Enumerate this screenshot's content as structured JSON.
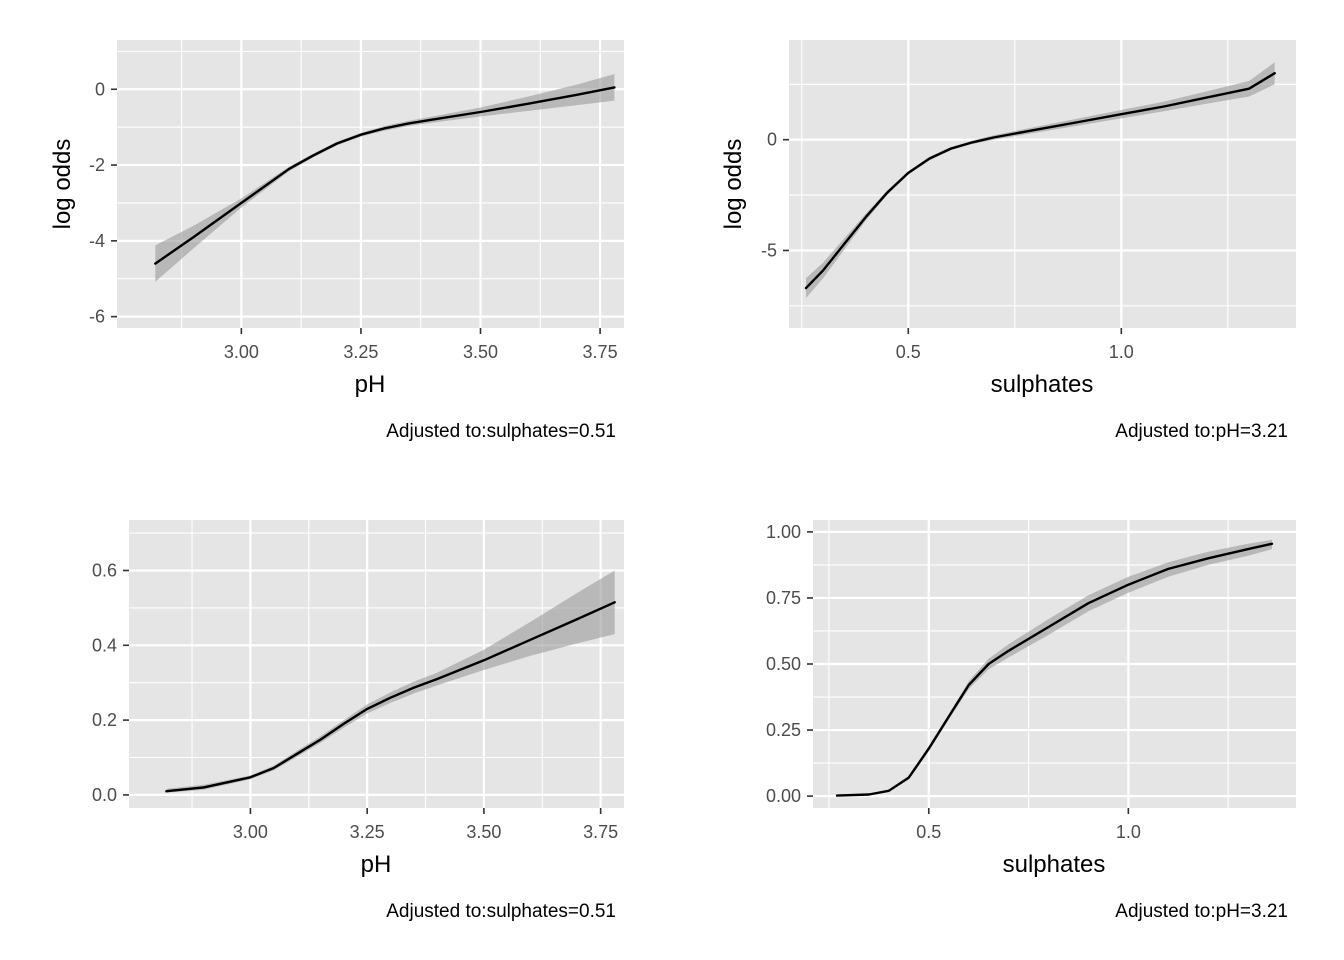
{
  "colors": {
    "panel_background": "#e5e5e5",
    "grid": "#ffffff",
    "line": "#000000",
    "ribbon": "#999999",
    "tick": "#333333"
  },
  "chart_data": [
    {
      "type": "line",
      "xlabel": "pH",
      "ylabel": "log odds",
      "caption": "Adjusted to:sulphates=0.51",
      "xlim": [
        2.74,
        3.8
      ],
      "ylim": [
        -6.3,
        1.3
      ],
      "xticks": [
        3.0,
        3.25,
        3.5,
        3.75
      ],
      "xtick_labels": [
        "3.00",
        "3.25",
        "3.50",
        "3.75"
      ],
      "yticks": [
        -6,
        -4,
        -2,
        0
      ],
      "ytick_labels": [
        "-6",
        "-4",
        "-2",
        "0"
      ],
      "grid": true,
      "x": [
        2.82,
        2.9,
        3.0,
        3.05,
        3.1,
        3.15,
        3.2,
        3.25,
        3.3,
        3.35,
        3.4,
        3.5,
        3.6,
        3.7,
        3.78
      ],
      "y": [
        -4.6,
        -3.9,
        -3.0,
        -2.55,
        -2.1,
        -1.75,
        -1.43,
        -1.2,
        -1.03,
        -0.9,
        -0.8,
        -0.6,
        -0.38,
        -0.15,
        0.05
      ],
      "lower": [
        -5.08,
        -4.2,
        -3.12,
        -2.64,
        -2.16,
        -1.8,
        -1.48,
        -1.25,
        -1.09,
        -0.97,
        -0.88,
        -0.72,
        -0.57,
        -0.42,
        -0.3
      ],
      "upper": [
        -4.12,
        -3.6,
        -2.88,
        -2.46,
        -2.04,
        -1.7,
        -1.38,
        -1.15,
        -0.97,
        -0.83,
        -0.72,
        -0.48,
        -0.19,
        0.12,
        0.4
      ]
    },
    {
      "type": "line",
      "xlabel": "sulphates",
      "ylabel": "log odds",
      "caption": "Adjusted to:pH=3.21",
      "xlim": [
        0.22,
        1.41
      ],
      "ylim": [
        -8.5,
        4.5
      ],
      "xticks": [
        0.5,
        1.0
      ],
      "xtick_labels": [
        "0.5",
        "1.0"
      ],
      "yticks": [
        -5,
        0
      ],
      "ytick_labels": [
        "-5",
        "0"
      ],
      "grid": true,
      "x": [
        0.26,
        0.3,
        0.35,
        0.4,
        0.45,
        0.5,
        0.55,
        0.6,
        0.65,
        0.7,
        0.8,
        0.9,
        1.0,
        1.1,
        1.2,
        1.3,
        1.36
      ],
      "y": [
        -6.7,
        -5.9,
        -4.7,
        -3.5,
        -2.4,
        -1.5,
        -0.85,
        -0.4,
        -0.12,
        0.1,
        0.45,
        0.8,
        1.15,
        1.5,
        1.9,
        2.3,
        3.0
      ],
      "lower": [
        -7.15,
        -6.25,
        -4.95,
        -3.65,
        -2.5,
        -1.58,
        -0.93,
        -0.47,
        -0.2,
        0.0,
        0.32,
        0.64,
        0.96,
        1.28,
        1.62,
        1.95,
        2.5
      ],
      "upper": [
        -6.25,
        -5.55,
        -4.45,
        -3.35,
        -2.3,
        -1.42,
        -0.77,
        -0.33,
        -0.04,
        0.2,
        0.58,
        0.96,
        1.34,
        1.72,
        2.18,
        2.65,
        3.5
      ]
    },
    {
      "type": "line",
      "xlabel": "pH",
      "ylabel": "",
      "caption": "Adjusted to:sulphates=0.51",
      "xlim": [
        2.74,
        3.8
      ],
      "ylim": [
        -0.035,
        0.735
      ],
      "xticks": [
        3.0,
        3.25,
        3.5,
        3.75
      ],
      "xtick_labels": [
        "3.00",
        "3.25",
        "3.50",
        "3.75"
      ],
      "yticks": [
        0.0,
        0.2,
        0.4,
        0.6
      ],
      "ytick_labels": [
        "0.0",
        "0.2",
        "0.4",
        "0.6"
      ],
      "grid": true,
      "x": [
        2.82,
        2.9,
        3.0,
        3.05,
        3.1,
        3.15,
        3.2,
        3.25,
        3.3,
        3.35,
        3.4,
        3.5,
        3.6,
        3.7,
        3.78
      ],
      "y": [
        0.01,
        0.02,
        0.047,
        0.072,
        0.11,
        0.148,
        0.19,
        0.23,
        0.26,
        0.287,
        0.31,
        0.36,
        0.415,
        0.47,
        0.515
      ],
      "lower": [
        0.006,
        0.014,
        0.042,
        0.066,
        0.102,
        0.139,
        0.18,
        0.218,
        0.246,
        0.271,
        0.293,
        0.334,
        0.372,
        0.405,
        0.43
      ],
      "upper": [
        0.016,
        0.027,
        0.052,
        0.078,
        0.118,
        0.157,
        0.2,
        0.242,
        0.274,
        0.303,
        0.327,
        0.388,
        0.463,
        0.54,
        0.6
      ]
    },
    {
      "type": "line",
      "xlabel": "sulphates",
      "ylabel": "",
      "caption": "Adjusted to:pH=3.21",
      "xlim": [
        0.21,
        1.42
      ],
      "ylim": [
        -0.045,
        1.045
      ],
      "xticks": [
        0.5,
        1.0
      ],
      "xtick_labels": [
        "0.5",
        "1.0"
      ],
      "yticks": [
        0.0,
        0.25,
        0.5,
        0.75,
        1.0
      ],
      "ytick_labels": [
        "0.00",
        "0.25",
        "0.50",
        "0.75",
        "1.00"
      ],
      "grid": true,
      "x": [
        0.27,
        0.35,
        0.4,
        0.45,
        0.5,
        0.55,
        0.6,
        0.65,
        0.7,
        0.8,
        0.9,
        1.0,
        1.1,
        1.2,
        1.3,
        1.36
      ],
      "y": [
        0.002,
        0.006,
        0.02,
        0.07,
        0.18,
        0.3,
        0.42,
        0.5,
        0.55,
        0.64,
        0.73,
        0.8,
        0.86,
        0.9,
        0.935,
        0.955
      ],
      "lower": [
        0.001,
        0.004,
        0.016,
        0.063,
        0.17,
        0.29,
        0.405,
        0.48,
        0.525,
        0.61,
        0.7,
        0.77,
        0.83,
        0.875,
        0.91,
        0.935
      ],
      "upper": [
        0.003,
        0.008,
        0.024,
        0.077,
        0.19,
        0.31,
        0.435,
        0.52,
        0.575,
        0.67,
        0.76,
        0.83,
        0.885,
        0.925,
        0.955,
        0.97
      ]
    }
  ]
}
